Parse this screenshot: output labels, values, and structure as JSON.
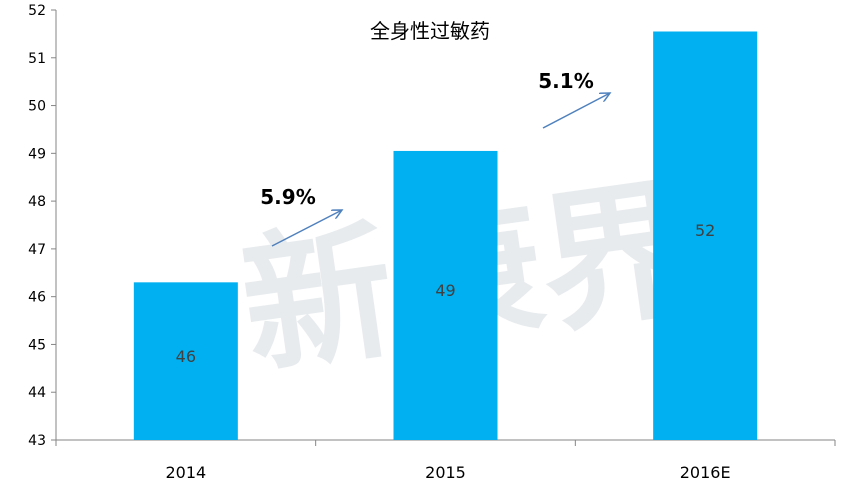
{
  "chart_data": {
    "type": "bar",
    "title": "全身性过敏药",
    "categories": [
      "2014",
      "2015",
      "2016E"
    ],
    "values": [
      46.3,
      49.05,
      51.55
    ],
    "data_labels": [
      "46",
      "49",
      "52"
    ],
    "ylim": [
      43,
      52
    ],
    "yticks": [
      43,
      44,
      45,
      46,
      47,
      48,
      49,
      50,
      51,
      52
    ],
    "xlabel": "",
    "ylabel": "",
    "grid": false,
    "bar_color": "#00B0F0",
    "annotations": [
      {
        "text": "5.9%",
        "from": "2014",
        "to": "2015"
      },
      {
        "text": "5.1%",
        "from": "2015",
        "to": "2016E"
      }
    ],
    "annotation_arrow_color": "#4F81BD",
    "watermark": {
      "text": "新康界",
      "color": "#d9dde2"
    }
  }
}
